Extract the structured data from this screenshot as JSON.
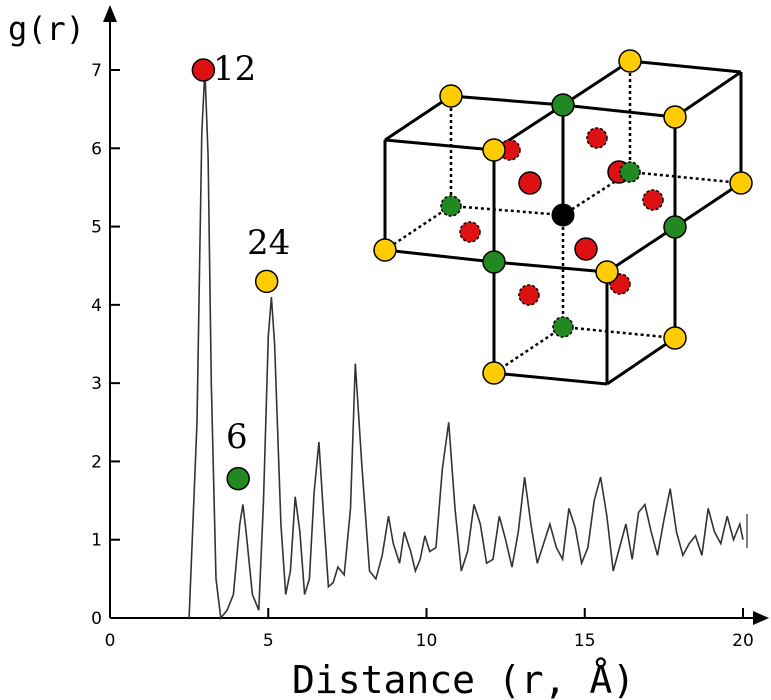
{
  "chart_data": {
    "type": "line",
    "ylabel": "g(r)",
    "xlabel": "Distance (r, Å)",
    "xlim": [
      0,
      20
    ],
    "ylim": [
      0,
      7.5
    ],
    "x_ticks": [
      0,
      5,
      10,
      15,
      20
    ],
    "y_ticks": [
      0,
      1,
      2,
      3,
      4,
      5,
      6,
      7
    ],
    "grid": false,
    "series": [
      {
        "x": [
          2.5,
          2.75,
          2.9,
          3.0,
          3.1,
          3.2,
          3.35,
          3.5,
          3.7,
          3.9,
          4.1,
          4.2,
          4.3,
          4.5,
          4.7,
          4.85,
          5.0,
          5.1,
          5.2,
          5.4,
          5.55,
          5.7,
          5.85,
          6.0,
          6.15,
          6.3,
          6.45,
          6.6,
          6.75,
          6.9,
          7.05,
          7.2,
          7.4,
          7.6,
          7.75,
          7.95,
          8.2,
          8.4,
          8.6,
          8.8,
          8.95,
          9.15,
          9.3,
          9.5,
          9.65,
          9.8,
          9.95,
          10.1,
          10.3,
          10.5,
          10.7,
          10.9,
          11.1,
          11.3,
          11.5,
          11.7,
          11.9,
          12.1,
          12.3,
          12.5,
          12.7,
          12.9,
          13.1,
          13.3,
          13.5,
          13.7,
          13.9,
          14.1,
          14.3,
          14.5,
          14.7,
          14.9,
          15.1,
          15.3,
          15.5,
          15.7,
          15.9,
          16.1,
          16.3,
          16.5,
          16.7,
          16.9,
          17.1,
          17.3,
          17.5,
          17.7,
          17.9,
          18.1,
          18.3,
          18.5,
          18.7,
          18.9,
          19.1,
          19.3,
          19.5,
          19.7,
          19.9,
          20.0
        ],
        "y": [
          0.0,
          2.5,
          6.2,
          7.0,
          5.9,
          3.0,
          0.5,
          0.0,
          0.1,
          0.3,
          1.2,
          1.45,
          1.1,
          0.3,
          0.1,
          1.5,
          3.6,
          4.1,
          3.5,
          1.2,
          0.3,
          0.6,
          1.55,
          1.1,
          0.3,
          0.5,
          1.6,
          2.25,
          1.3,
          0.4,
          0.45,
          0.65,
          0.55,
          1.4,
          3.25,
          2.0,
          0.6,
          0.5,
          0.8,
          1.3,
          0.95,
          0.7,
          1.1,
          0.85,
          0.6,
          0.75,
          1.05,
          0.85,
          0.9,
          1.9,
          2.5,
          1.4,
          0.6,
          0.85,
          1.45,
          1.2,
          0.7,
          0.75,
          1.3,
          1.0,
          0.65,
          1.1,
          1.8,
          1.2,
          0.7,
          0.95,
          1.2,
          0.9,
          0.75,
          1.4,
          1.15,
          0.7,
          0.9,
          1.5,
          1.8,
          1.3,
          0.6,
          0.9,
          1.2,
          0.75,
          1.35,
          1.45,
          1.1,
          0.8,
          1.25,
          1.65,
          1.1,
          0.8,
          0.95,
          1.05,
          0.8,
          1.4,
          1.1,
          0.95,
          1.3,
          1.0,
          1.2,
          1.0
        ]
      }
    ],
    "annotations": [
      {
        "text": "12",
        "x": 2.95,
        "y": 7.0
      },
      {
        "text": "24",
        "x": 4.95,
        "y": 4.3
      },
      {
        "text": "6",
        "x": 4.05,
        "y": 1.78
      }
    ],
    "markers": [
      {
        "x": 2.95,
        "y": 7.0,
        "color": "#dd1111"
      },
      {
        "x": 4.95,
        "y": 4.3,
        "color": "#ffcc00"
      },
      {
        "x": 4.05,
        "y": 1.78,
        "color": "#228822"
      }
    ]
  },
  "inset": {
    "colors": {
      "center": "#000000",
      "first_shell": "#dd1111",
      "second_shell": "#ffcc00",
      "third_shell": "#228822",
      "edge": "#000000"
    }
  }
}
